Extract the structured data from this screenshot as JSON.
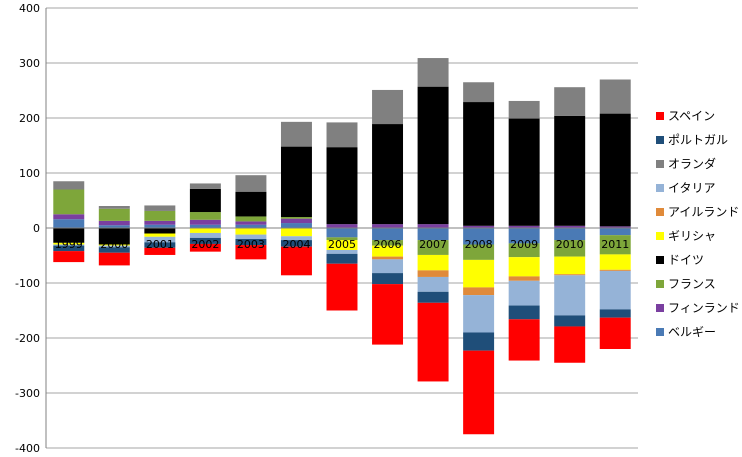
{
  "chart_data": {
    "type": "bar",
    "stacked": true,
    "categories": [
      "1999",
      "2000",
      "2001",
      "2002",
      "2003",
      "2004",
      "2005",
      "2006",
      "2007",
      "2008",
      "2009",
      "2010",
      "2011"
    ],
    "ylim": [
      -400,
      400
    ],
    "yticks": [
      -400,
      -300,
      -200,
      -100,
      0,
      100,
      200,
      300,
      400
    ],
    "grid": true,
    "legend_position": "right",
    "series": [
      {
        "name": "ベルギー",
        "color": "#4a7ab5",
        "values": [
          16,
          5,
          6,
          6,
          6,
          9,
          -17,
          -22,
          -22,
          -30,
          -28,
          -22,
          -13
        ]
      },
      {
        "name": "フィンランド",
        "color": "#7a3fa0",
        "values": [
          9,
          8,
          7,
          9,
          6,
          8,
          7,
          7,
          7,
          4,
          4,
          4,
          3
        ]
      },
      {
        "name": "フランス",
        "color": "#7ea63a",
        "values": [
          45,
          22,
          18,
          14,
          9,
          3,
          -5,
          -10,
          -27,
          -28,
          -25,
          -30,
          -35
        ]
      },
      {
        "name": "ドイツ",
        "color": "#000000",
        "values": [
          -27,
          -30,
          -10,
          42,
          45,
          128,
          140,
          182,
          250,
          225,
          195,
          200,
          205
        ]
      },
      {
        "name": "ギリシャ",
        "color": "#ffff00",
        "values": [
          -3,
          -2,
          -6,
          -9,
          -12,
          -15,
          -18,
          -20,
          -28,
          -50,
          -35,
          -32,
          -28
        ]
      },
      {
        "name": "アイルランド",
        "color": "#e08a3a",
        "values": [
          0,
          0,
          0,
          0,
          0,
          0,
          0,
          -5,
          -12,
          -14,
          -8,
          -2,
          -2
        ]
      },
      {
        "name": "イタリア",
        "color": "#95b3d7",
        "values": [
          -2,
          -3,
          -10,
          -9,
          -8,
          -7,
          -7,
          -25,
          -27,
          -68,
          -45,
          -73,
          -70
        ]
      },
      {
        "name": "オランダ",
        "color": "#808080",
        "values": [
          15,
          5,
          10,
          10,
          30,
          45,
          45,
          62,
          52,
          36,
          32,
          52,
          62
        ]
      },
      {
        "name": "ポルトガル",
        "color": "#1f4e79",
        "values": [
          -10,
          -10,
          -10,
          -11,
          -11,
          -12,
          -18,
          -20,
          -20,
          -33,
          -25,
          -20,
          -15
        ]
      },
      {
        "name": "スペイン",
        "color": "#ff0000",
        "values": [
          -20,
          -23,
          -13,
          -14,
          -26,
          -52,
          -85,
          -110,
          -143,
          -152,
          -75,
          -66,
          -57
        ]
      }
    ]
  }
}
